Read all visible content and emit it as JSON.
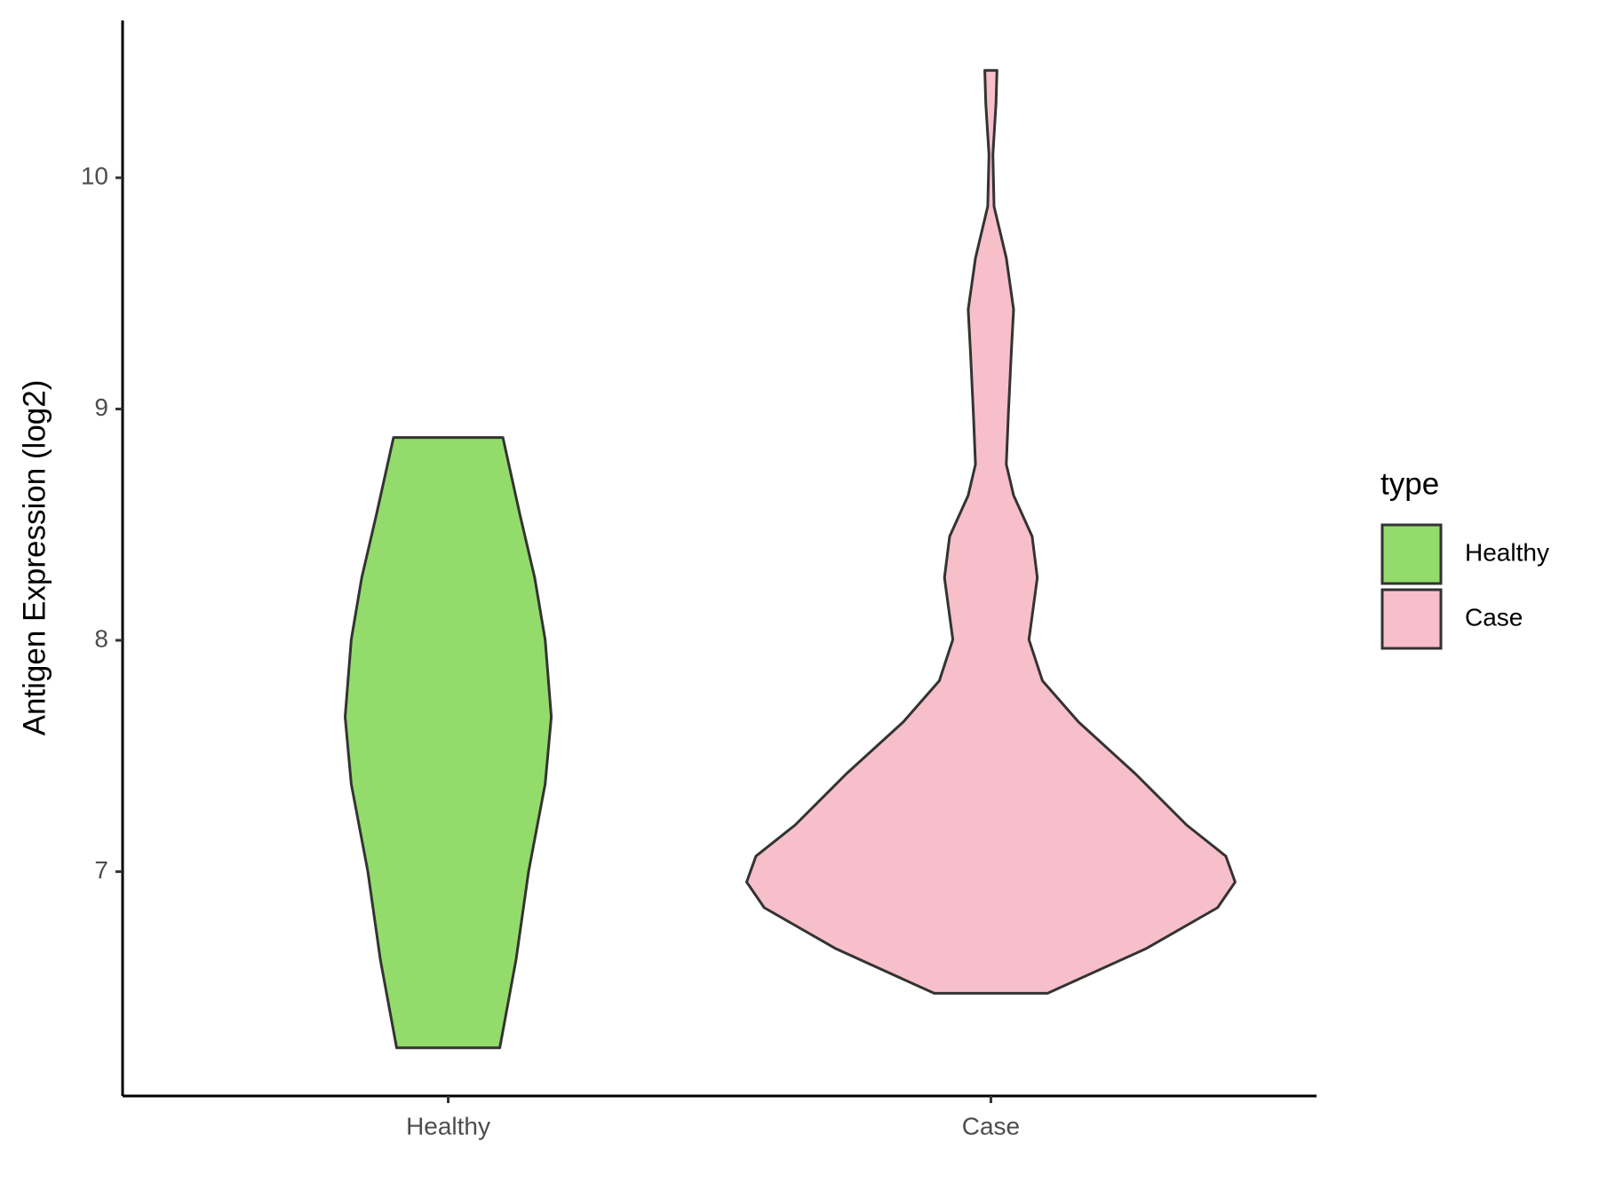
{
  "chart_data": {
    "type": "violin",
    "y_label": "Antigen Expression (log2)",
    "categories": [
      "Healthy",
      "Case"
    ],
    "series": [
      {
        "name": "Healthy",
        "color": "#93dc6b",
        "y": [
          8.877,
          8.538,
          8.271,
          8.003,
          7.669,
          7.379,
          7.0,
          6.621,
          6.238
        ],
        "density": [
          0.224,
          0.295,
          0.354,
          0.397,
          0.422,
          0.397,
          0.329,
          0.278,
          0.211
        ]
      },
      {
        "name": "Case",
        "color": "#f7bfca",
        "y": [
          10.464,
          10.321,
          10.099,
          9.876,
          9.653,
          9.43,
          9.251,
          8.984,
          8.761,
          8.627,
          8.449,
          8.271,
          8.003,
          7.825,
          7.647,
          7.424,
          7.201,
          7.067,
          6.955,
          6.844,
          6.666,
          6.474
        ],
        "density": [
          0.025,
          0.021,
          0.008,
          0.013,
          0.063,
          0.093,
          0.084,
          0.072,
          0.063,
          0.093,
          0.169,
          0.19,
          0.156,
          0.211,
          0.359,
          0.591,
          0.802,
          0.962,
          1,
          0.928,
          0.633,
          0.232
        ]
      }
    ],
    "ylim": [
      6.03,
      10.68
    ],
    "yticks": [
      7,
      8,
      9,
      10
    ],
    "legend_title": "type"
  }
}
